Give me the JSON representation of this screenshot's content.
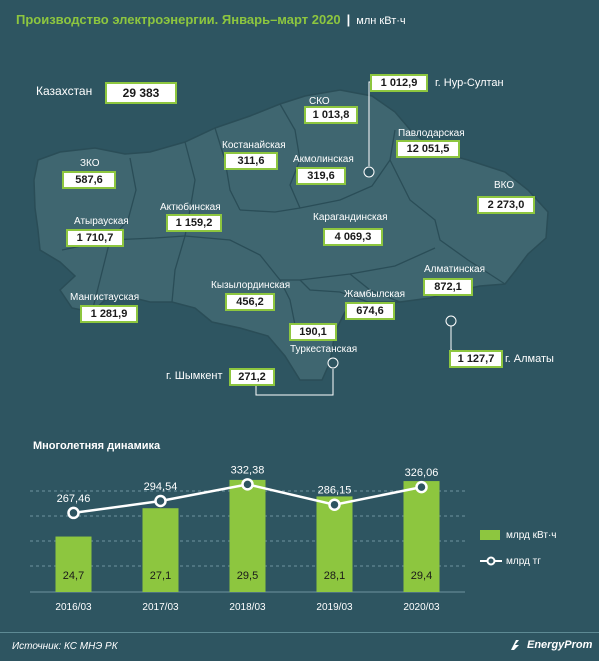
{
  "header": {
    "title": "Производство электроэнергии. Январь–март 2020",
    "separator": "|",
    "unit": "млн кВт·ч"
  },
  "kazakhstan": {
    "label": "Казахстан",
    "value": "29 383"
  },
  "regions": {
    "sko": {
      "name": "СКО",
      "value": "1 013,8"
    },
    "nursultan": {
      "name": "г. Нур-Султан",
      "value": "1 012,9"
    },
    "pavlodar": {
      "name": "Павлодарская",
      "value": "12 051,5"
    },
    "kostanay": {
      "name": "Костанайская",
      "value": "311,6"
    },
    "akmola": {
      "name": "Акмолинская",
      "value": "319,6"
    },
    "zko": {
      "name": "ЗКО",
      "value": "587,6"
    },
    "vko": {
      "name": "ВКО",
      "value": "2 273,0"
    },
    "atyrau": {
      "name": "Атырауская",
      "value": "1 710,7"
    },
    "aktobe": {
      "name": "Актюбинская",
      "value": "1 159,2"
    },
    "karaganda": {
      "name": "Карагандинская",
      "value": "4 069,3"
    },
    "almaty_obl": {
      "name": "Алматинская",
      "value": "872,1"
    },
    "mangistau": {
      "name": "Мангистауская",
      "value": "1 281,9"
    },
    "kyzylorda": {
      "name": "Кызылординская",
      "value": "456,2"
    },
    "zhambyl": {
      "name": "Жамбылская",
      "value": "674,6"
    },
    "turkestan": {
      "name": "Туркестанская",
      "value": "190,1"
    },
    "almaty_city": {
      "name": "г. Алматы",
      "value": "1 127,7"
    },
    "shymkent": {
      "name": "г. Шымкент",
      "value": "271,2"
    }
  },
  "colors": {
    "background": "#2e5561",
    "land": "#3f6670",
    "border": "#2a4d57",
    "accent": "#8dc63f"
  },
  "chart_title": "Многолетняя динамика",
  "chart_data": {
    "type": "bar",
    "categories": [
      "2016/03",
      "2017/03",
      "2018/03",
      "2019/03",
      "2020/03"
    ],
    "series": [
      {
        "name": "млрд кВт·ч",
        "type": "bar",
        "values": [
          24.7,
          27.1,
          29.5,
          28.1,
          29.4
        ],
        "labels": [
          "24,7",
          "27,1",
          "29,5",
          "28,1",
          "29,4"
        ]
      },
      {
        "name": "млрд тг",
        "type": "line",
        "values": [
          267.46,
          294.54,
          332.38,
          286.15,
          326.06
        ],
        "labels": [
          "267,46",
          "294,54",
          "332,38",
          "286,15",
          "326,06"
        ]
      }
    ],
    "grid": true
  },
  "footer": {
    "source": "Источник: КС МНЭ РК",
    "logo": "EnergyProm"
  }
}
